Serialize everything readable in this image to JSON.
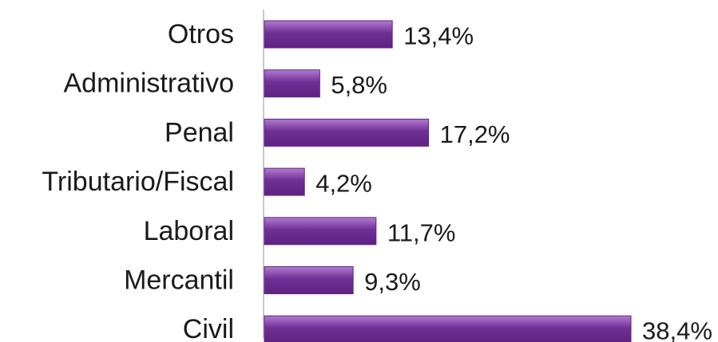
{
  "chart_data": {
    "type": "bar",
    "orientation": "horizontal",
    "categories": [
      "Otros",
      "Administrativo",
      "Penal",
      "Tributario/Fiscal",
      "Laboral",
      "Mercantil",
      "Civil"
    ],
    "values": [
      13.4,
      5.8,
      17.2,
      4.2,
      11.7,
      9.3,
      38.4
    ],
    "value_labels": [
      "13,4%",
      "5,8%",
      "17,2%",
      "4,2%",
      "11,7%",
      "9,3%",
      "38,4%"
    ],
    "unit": "%",
    "title": "",
    "xlabel": "",
    "ylabel": "",
    "xlim": [
      0,
      40
    ],
    "grid": false,
    "legend": "none",
    "colors": {
      "bar_top": "#b27ccf",
      "bar_bottom": "#6f2f96",
      "bar_border": "#5f2282",
      "text": "#1a1a1a",
      "axis": "#c8c8c8"
    }
  }
}
